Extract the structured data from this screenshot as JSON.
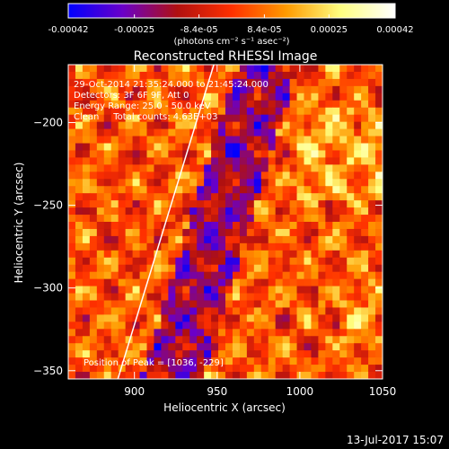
{
  "colorbar": {
    "tick_labels": [
      "-0.00042",
      "-0.00025",
      "-8.4e-05",
      "8.4e-05",
      "0.00025",
      "0.00042"
    ],
    "tick_values": [
      -0.00042,
      -0.00025,
      -8.4e-05,
      8.4e-05,
      0.00025,
      0.00042
    ],
    "range": [
      -0.00042,
      0.00042
    ],
    "unit_label": "(photons cm⁻² s⁻¹ asec⁻²)",
    "colormap": [
      "#0000ff",
      "#6a00c8",
      "#b01010",
      "#ff3000",
      "#ff9a00",
      "#ffff80",
      "#ffffff"
    ]
  },
  "chart_data": {
    "type": "heatmap",
    "title": "Reconstructed RHESSI Image",
    "xlabel": "Heliocentric X (arcsec)",
    "ylabel": "Heliocentric Y (arcsec)",
    "xlim": [
      860,
      1050
    ],
    "ylim": [
      -355,
      -165
    ],
    "xticks": [
      900,
      950,
      1000,
      1050
    ],
    "yticks": [
      -200,
      -250,
      -300,
      -350
    ],
    "xtick_labels": [
      "900",
      "950",
      "1000",
      "1050"
    ],
    "ytick_labels": [
      "−200",
      "−250",
      "−300",
      "−350"
    ],
    "limb_line": [
      [
        890,
        -355
      ],
      [
        948,
        -165
      ]
    ],
    "peak": [
      1036,
      -229
    ],
    "annotations": {
      "time": "29-Oct-2014 21:35:24.000 to 21:45:24.000",
      "detectors": "Detectors: 3F 6F 9F, Att 0",
      "energy": "Energy Range: 25.0 - 50.0 keV",
      "clean": "Clean     Total counts: 4.63E+03",
      "peak_text": "Position of Peak = [1036, -229]"
    }
  },
  "footer": {
    "date": "13-Jul-2017 15:07"
  }
}
